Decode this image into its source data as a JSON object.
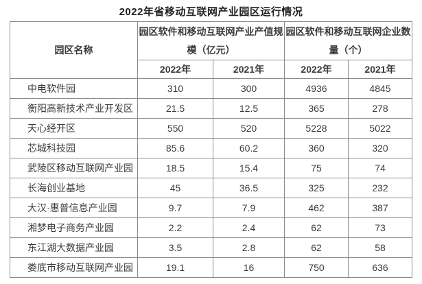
{
  "page": {
    "title": "2022年省移动互联网产业园区运行情况"
  },
  "table": {
    "park_name_header": "园区名称",
    "group_headers": {
      "output_scale": "园区软件和移动互联网产业产值规模（亿元）",
      "enterprise_count": "园区软件和移动互联网企业数量（个）"
    },
    "year_headers": [
      "2022年",
      "2021年",
      "2022年",
      "2021年"
    ],
    "rows": [
      {
        "name": "中电软件园",
        "values": [
          "310",
          "300",
          "4936",
          "4845"
        ]
      },
      {
        "name": "衡阳高新技术产业开发区",
        "values": [
          "21.5",
          "12.5",
          "365",
          "278"
        ]
      },
      {
        "name": "天心经开区",
        "values": [
          "550",
          "520",
          "5228",
          "5022"
        ]
      },
      {
        "name": "芯城科技园",
        "values": [
          "85.6",
          "60.2",
          "360",
          "320"
        ]
      },
      {
        "name": "武陵区移动互联网产业园",
        "values": [
          "18.5",
          "15.4",
          "75",
          "74"
        ]
      },
      {
        "name": "长海创业基地",
        "values": [
          "45",
          "36.5",
          "325",
          "232"
        ]
      },
      {
        "name": "大汉·惠普信息产业园",
        "values": [
          "9.7",
          "7.9",
          "462",
          "387"
        ]
      },
      {
        "name": "湘梦电子商务产业园",
        "values": [
          "2.2",
          "2.4",
          "62",
          "73"
        ]
      },
      {
        "name": "东江湖大数据产业园",
        "values": [
          "3.5",
          "2.8",
          "62",
          "58"
        ]
      },
      {
        "name": "娄底市移动互联网产业园",
        "values": [
          "19.1",
          "16",
          "750",
          "636"
        ]
      }
    ]
  },
  "colors": {
    "background": "#ffffff",
    "border": "#8a8a8a",
    "text": "#3b3b3b",
    "title_text": "#222222"
  }
}
